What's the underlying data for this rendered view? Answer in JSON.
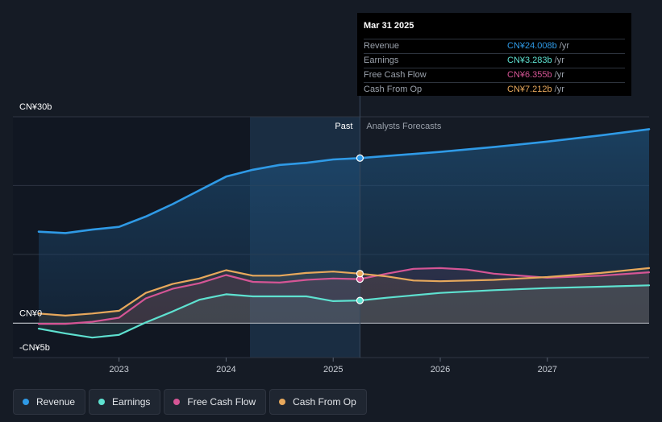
{
  "tooltip": {
    "date": "Mar 31 2025",
    "rows": [
      {
        "label": "Revenue",
        "value": "CN¥24.008b",
        "unit": "/yr",
        "color": "#2f9ae6"
      },
      {
        "label": "Earnings",
        "value": "CN¥3.283b",
        "unit": "/yr",
        "color": "#5ee1d0"
      },
      {
        "label": "Free Cash Flow",
        "value": "CN¥6.355b",
        "unit": "/yr",
        "color": "#d55595"
      },
      {
        "label": "Cash From Op",
        "value": "CN¥7.212b",
        "unit": "/yr",
        "color": "#e7a85c"
      }
    ]
  },
  "legend": [
    {
      "label": "Revenue",
      "color": "#2f9ae6"
    },
    {
      "label": "Earnings",
      "color": "#5ee1d0"
    },
    {
      "label": "Free Cash Flow",
      "color": "#d55595"
    },
    {
      "label": "Cash From Op",
      "color": "#e7a85c"
    }
  ],
  "chart_data": {
    "type": "line",
    "y_tick_labels": [
      "CN¥30b",
      "CN¥0",
      "-CN¥5b"
    ],
    "ylim": [
      -5,
      30
    ],
    "xlim": [
      2022.25,
      2027.95
    ],
    "x_ticks": [
      2023,
      2024,
      2025,
      2026,
      2027
    ],
    "x_tick_labels": [
      "2023",
      "2024",
      "2025",
      "2026",
      "2027"
    ],
    "past_label": "Past",
    "forecast_label": "Analysts Forecasts",
    "past_end": 2025.25,
    "series": [
      {
        "name": "Revenue",
        "color": "#2f9ae6",
        "points": [
          [
            2022.25,
            13.3
          ],
          [
            2022.5,
            13.1
          ],
          [
            2022.75,
            13.6
          ],
          [
            2023.0,
            14.0
          ],
          [
            2023.25,
            15.5
          ],
          [
            2023.5,
            17.3
          ],
          [
            2023.75,
            19.3
          ],
          [
            2024.0,
            21.3
          ],
          [
            2024.25,
            22.3
          ],
          [
            2024.5,
            23.0
          ],
          [
            2024.75,
            23.3
          ],
          [
            2025.0,
            23.8
          ],
          [
            2025.25,
            24.0
          ],
          [
            2025.5,
            24.3
          ],
          [
            2026.0,
            24.9
          ],
          [
            2026.5,
            25.6
          ],
          [
            2027.0,
            26.4
          ],
          [
            2027.5,
            27.3
          ],
          [
            2027.95,
            28.2
          ]
        ]
      },
      {
        "name": "Earnings",
        "color": "#5ee1d0",
        "points": [
          [
            2022.25,
            -0.8
          ],
          [
            2022.5,
            -1.5
          ],
          [
            2022.75,
            -2.1
          ],
          [
            2023.0,
            -1.7
          ],
          [
            2023.25,
            0.1
          ],
          [
            2023.5,
            1.7
          ],
          [
            2023.75,
            3.4
          ],
          [
            2024.0,
            4.2
          ],
          [
            2024.25,
            3.9
          ],
          [
            2024.5,
            3.9
          ],
          [
            2024.75,
            3.9
          ],
          [
            2025.0,
            3.2
          ],
          [
            2025.25,
            3.3
          ],
          [
            2025.5,
            3.7
          ],
          [
            2026.0,
            4.4
          ],
          [
            2026.5,
            4.8
          ],
          [
            2027.0,
            5.1
          ],
          [
            2027.5,
            5.3
          ],
          [
            2027.95,
            5.5
          ]
        ]
      },
      {
        "name": "Free Cash Flow",
        "color": "#d55595",
        "points": [
          [
            2022.25,
            -0.1
          ],
          [
            2022.5,
            -0.1
          ],
          [
            2022.75,
            0.2
          ],
          [
            2023.0,
            0.8
          ],
          [
            2023.25,
            3.6
          ],
          [
            2023.5,
            5.0
          ],
          [
            2023.75,
            5.8
          ],
          [
            2024.0,
            7.0
          ],
          [
            2024.25,
            6.0
          ],
          [
            2024.5,
            5.9
          ],
          [
            2024.75,
            6.3
          ],
          [
            2025.0,
            6.5
          ],
          [
            2025.25,
            6.4
          ],
          [
            2025.5,
            7.2
          ],
          [
            2025.75,
            7.9
          ],
          [
            2026.0,
            8.0
          ],
          [
            2026.25,
            7.8
          ],
          [
            2026.5,
            7.2
          ],
          [
            2027.0,
            6.6
          ],
          [
            2027.5,
            6.9
          ],
          [
            2027.95,
            7.4
          ]
        ]
      },
      {
        "name": "Cash From Op",
        "color": "#e7a85c",
        "points": [
          [
            2022.25,
            1.4
          ],
          [
            2022.5,
            1.1
          ],
          [
            2022.75,
            1.4
          ],
          [
            2023.0,
            1.8
          ],
          [
            2023.25,
            4.4
          ],
          [
            2023.5,
            5.7
          ],
          [
            2023.75,
            6.5
          ],
          [
            2024.0,
            7.7
          ],
          [
            2024.25,
            6.9
          ],
          [
            2024.5,
            6.9
          ],
          [
            2024.75,
            7.3
          ],
          [
            2025.0,
            7.5
          ],
          [
            2025.25,
            7.2
          ],
          [
            2025.5,
            6.8
          ],
          [
            2025.75,
            6.2
          ],
          [
            2026.0,
            6.1
          ],
          [
            2026.5,
            6.3
          ],
          [
            2027.0,
            6.7
          ],
          [
            2027.5,
            7.3
          ],
          [
            2027.95,
            8.0
          ]
        ]
      }
    ],
    "highlight_x": 2025.25
  }
}
